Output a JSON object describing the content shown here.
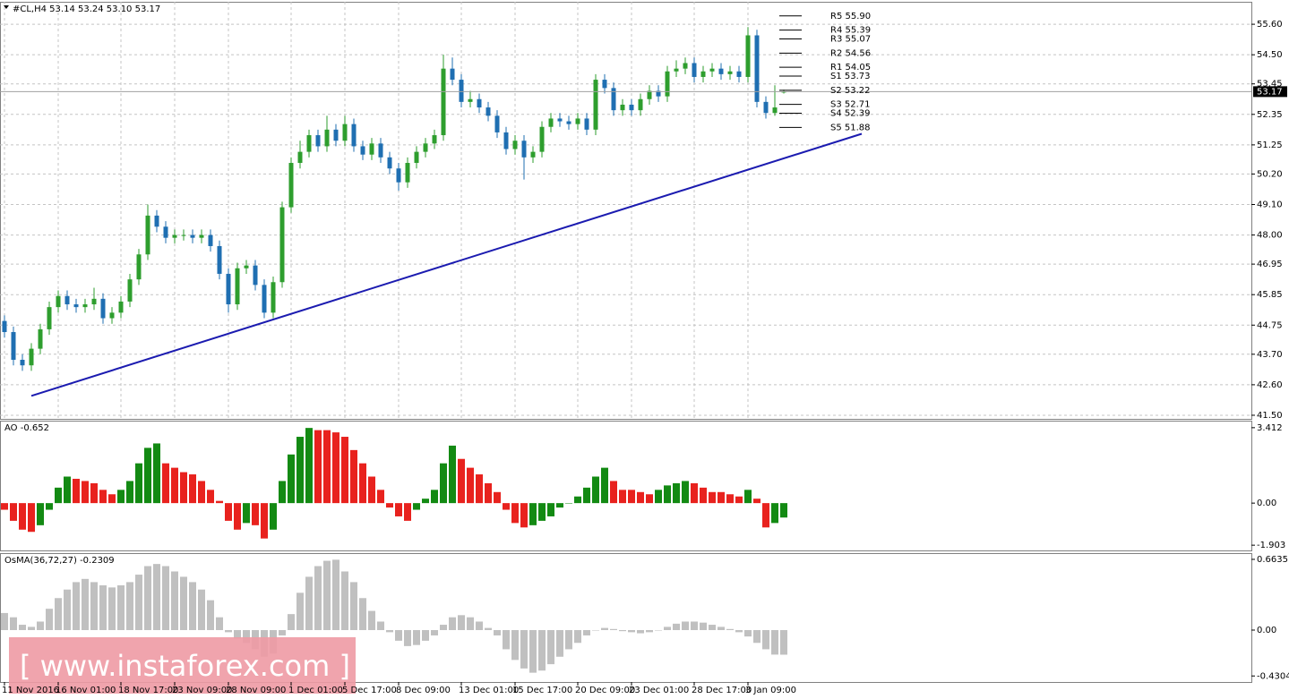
{
  "chart_data": [
    {
      "type": "candlestick",
      "title": "#CL,H4  53.14 53.24 53.10 53.17",
      "categories": [
        "11 Nov 2016",
        null,
        null,
        null,
        null,
        null,
        "16 Nov 01:00",
        null,
        null,
        null,
        null,
        null,
        null,
        "18 Nov 17:00",
        null,
        null,
        null,
        null,
        null,
        "23 Nov 09:00",
        null,
        null,
        null,
        null,
        null,
        "28 Nov 09:00",
        null,
        null,
        null,
        null,
        null,
        null,
        "1 Dec 01:00",
        null,
        null,
        null,
        null,
        null,
        "5 Dec 17:00",
        null,
        null,
        null,
        null,
        null,
        "8 Dec 09:00",
        null,
        null,
        null,
        null,
        null,
        null,
        "13 Dec 01:00",
        null,
        null,
        null,
        null,
        null,
        "15 Dec 17:00",
        null,
        null,
        null,
        null,
        null,
        null,
        "20 Dec 09:00",
        null,
        null,
        null,
        null,
        null,
        "23 Dec 01:00",
        null,
        null,
        null,
        null,
        null,
        null,
        "28 Dec 17:00",
        null,
        null,
        null,
        null,
        null,
        "3 Jan 09:00",
        null,
        null,
        null,
        null
      ],
      "open": [
        44.9,
        44.5,
        43.5,
        43.3,
        43.9,
        44.6,
        45.4,
        45.8,
        45.5,
        45.4,
        45.5,
        45.7,
        45.0,
        45.2,
        45.6,
        46.4,
        47.3,
        48.7,
        48.3,
        47.9,
        48.0,
        48.0,
        47.9,
        48.0,
        47.6,
        46.6,
        45.5,
        46.8,
        46.9,
        46.2,
        45.2,
        46.3,
        49.0,
        50.6,
        51.0,
        51.6,
        51.2,
        51.8,
        51.4,
        52.0,
        51.2,
        50.9,
        51.3,
        50.8,
        50.4,
        49.9,
        50.6,
        51.0,
        51.3,
        51.6,
        54.0,
        53.6,
        52.8,
        52.9,
        52.6,
        52.3,
        51.7,
        51.1,
        51.4,
        50.8,
        51.0,
        51.9,
        52.2,
        52.1,
        52.0,
        52.2,
        51.8,
        53.6,
        53.3,
        52.5,
        52.7,
        52.5,
        52.9,
        53.2,
        53.0,
        53.9,
        54.0,
        54.2,
        53.7,
        53.9,
        54.0,
        53.8,
        53.9,
        53.7,
        55.2,
        52.8,
        52.4,
        53.14
      ],
      "high": [
        45.1,
        44.7,
        43.7,
        44.1,
        44.8,
        45.6,
        46.0,
        46.0,
        45.7,
        45.7,
        46.1,
        45.9,
        45.4,
        45.8,
        46.6,
        47.5,
        49.1,
        48.9,
        48.5,
        48.2,
        48.2,
        48.2,
        48.2,
        48.2,
        47.8,
        46.8,
        47.0,
        47.1,
        47.1,
        46.4,
        46.5,
        49.2,
        50.8,
        51.4,
        51.8,
        51.8,
        52.3,
        52.0,
        52.3,
        52.2,
        51.4,
        51.5,
        51.5,
        51.0,
        50.6,
        50.8,
        51.2,
        51.5,
        51.8,
        54.5,
        54.4,
        53.8,
        53.2,
        53.1,
        52.8,
        52.5,
        51.9,
        51.6,
        51.6,
        51.2,
        52.1,
        52.4,
        52.4,
        52.3,
        52.4,
        52.4,
        53.8,
        53.8,
        53.5,
        52.9,
        52.9,
        53.1,
        53.4,
        53.4,
        54.1,
        54.3,
        54.4,
        54.4,
        54.1,
        54.2,
        54.2,
        54.1,
        54.1,
        55.5,
        55.4,
        53.0,
        53.4,
        53.24
      ],
      "low": [
        44.3,
        43.3,
        43.1,
        43.1,
        43.7,
        44.4,
        45.2,
        45.3,
        45.2,
        45.2,
        45.3,
        44.8,
        44.8,
        45.0,
        45.4,
        46.2,
        47.1,
        48.1,
        47.7,
        47.7,
        47.8,
        47.7,
        47.7,
        47.4,
        46.4,
        45.2,
        45.3,
        46.6,
        46.0,
        45.0,
        45.0,
        46.1,
        48.8,
        50.4,
        50.8,
        51.0,
        51.0,
        51.2,
        51.2,
        51.0,
        50.7,
        50.7,
        50.6,
        50.2,
        49.6,
        49.7,
        50.4,
        50.8,
        51.1,
        51.4,
        53.4,
        52.6,
        52.6,
        52.4,
        52.1,
        51.5,
        50.9,
        50.9,
        50.0,
        50.6,
        50.8,
        51.7,
        51.9,
        51.8,
        51.8,
        51.6,
        51.6,
        53.1,
        52.3,
        52.3,
        52.3,
        52.3,
        52.7,
        52.8,
        52.8,
        53.7,
        53.8,
        53.5,
        53.5,
        53.7,
        53.6,
        53.6,
        53.5,
        53.5,
        52.6,
        52.2,
        52.3,
        53.1
      ],
      "close": [
        44.5,
        43.5,
        43.3,
        43.9,
        44.6,
        45.4,
        45.8,
        45.5,
        45.4,
        45.5,
        45.7,
        45.0,
        45.2,
        45.6,
        46.4,
        47.3,
        48.7,
        48.3,
        47.9,
        48.0,
        48.0,
        47.9,
        48.0,
        47.6,
        46.6,
        45.5,
        46.8,
        46.9,
        46.2,
        45.2,
        46.3,
        49.0,
        50.6,
        51.0,
        51.6,
        51.2,
        51.8,
        51.4,
        52.0,
        51.2,
        50.9,
        51.3,
        50.8,
        50.4,
        49.9,
        50.6,
        51.0,
        51.3,
        51.6,
        54.0,
        53.6,
        52.8,
        52.9,
        52.6,
        52.3,
        51.7,
        51.1,
        51.4,
        50.8,
        51.0,
        51.9,
        52.2,
        52.1,
        52.0,
        52.2,
        51.8,
        53.6,
        53.3,
        52.5,
        52.7,
        52.5,
        52.9,
        53.2,
        53.0,
        53.9,
        54.0,
        54.2,
        53.7,
        53.9,
        54.0,
        53.8,
        53.9,
        53.7,
        55.2,
        52.8,
        52.4,
        52.6,
        53.17
      ],
      "up_color": "#2e9e2e",
      "down_color": "#1f6fb2",
      "ylim": [
        41.37,
        56.41
      ],
      "yticks": [
        {
          "value": 55.6,
          "label": "55.60"
        },
        {
          "value": 54.5,
          "label": "54.50"
        },
        53.45,
        52.35,
        51.25,
        {
          "value": 50.2,
          "label": "50.20"
        },
        {
          "value": 49.1,
          "label": "49.10"
        },
        {
          "value": 48,
          "label": "48.00"
        },
        46.95,
        45.85,
        44.75,
        {
          "value": 43.7,
          "label": "43.70"
        },
        {
          "value": 42.6,
          "label": "42.60"
        },
        {
          "value": 41.5,
          "label": "41.50"
        }
      ],
      "grid": true,
      "last_price": 53.17,
      "pivots": [
        {
          "label": "R5 55.90",
          "value": 55.9
        },
        {
          "label": "R4 55.39",
          "value": 55.39
        },
        {
          "label": "R3 55.07",
          "value": 55.07
        },
        {
          "label": "R2 54.56",
          "value": 54.56
        },
        {
          "label": "R1 54.05",
          "value": 54.05
        },
        {
          "label": "S1 53.73",
          "value": 53.73
        },
        {
          "label": "S2 53.22",
          "value": 53.22
        },
        {
          "label": "S3 52.71",
          "value": 52.71
        },
        {
          "label": "S4 52.39",
          "value": 52.39
        },
        {
          "label": "S5 51.88",
          "value": 51.88
        }
      ],
      "trendline": {
        "start": [
          3,
          42.2
        ],
        "end": [
          95.7,
          51.65
        ],
        "color": "#1b1bb0"
      }
    },
    {
      "type": "bar",
      "title": "AO -0.652",
      "values": [
        -0.3,
        -0.8,
        -1.2,
        -1.3,
        -1.0,
        -0.3,
        0.7,
        1.2,
        1.1,
        1.0,
        0.9,
        0.6,
        0.4,
        0.6,
        1.0,
        1.8,
        2.5,
        2.7,
        1.8,
        1.6,
        1.4,
        1.3,
        1.0,
        0.6,
        0.1,
        -0.8,
        -1.2,
        -0.9,
        -1.0,
        -1.6,
        -1.2,
        1.0,
        2.2,
        3.0,
        3.4,
        3.3,
        3.3,
        3.2,
        3.0,
        2.4,
        1.8,
        1.2,
        0.6,
        -0.2,
        -0.6,
        -0.8,
        -0.3,
        0.2,
        0.6,
        1.8,
        2.6,
        2.0,
        1.6,
        1.3,
        0.9,
        0.5,
        -0.3,
        -0.9,
        -1.1,
        -1.0,
        -0.8,
        -0.6,
        -0.2,
        0.0,
        0.3,
        0.7,
        1.2,
        1.6,
        1.0,
        0.6,
        0.6,
        0.5,
        0.4,
        0.6,
        0.8,
        0.9,
        1.0,
        0.9,
        0.7,
        0.5,
        0.5,
        0.4,
        0.3,
        0.6,
        0.2,
        -1.1,
        -0.9,
        -0.652
      ],
      "up_color": "#138a13",
      "down_color": "#e8221e",
      "ylim": [
        -2.14,
        3.73
      ],
      "yticks": [
        3.412,
        {
          "value": 0,
          "label": "0.00"
        },
        -1.903
      ],
      "grid": false
    },
    {
      "type": "bar",
      "title": "OsMA(36,72,27) -0.2309",
      "values": [
        0.16,
        0.12,
        0.05,
        0.03,
        0.08,
        0.2,
        0.3,
        0.38,
        0.45,
        0.48,
        0.45,
        0.42,
        0.4,
        0.42,
        0.45,
        0.52,
        0.6,
        0.62,
        0.6,
        0.55,
        0.5,
        0.45,
        0.38,
        0.28,
        0.12,
        -0.02,
        -0.08,
        -0.12,
        -0.18,
        -0.25,
        -0.22,
        -0.05,
        0.15,
        0.35,
        0.5,
        0.6,
        0.65,
        0.66,
        0.55,
        0.45,
        0.3,
        0.18,
        0.08,
        -0.02,
        -0.1,
        -0.15,
        -0.14,
        -0.1,
        -0.05,
        0.05,
        0.12,
        0.14,
        0.12,
        0.08,
        0.02,
        -0.05,
        -0.18,
        -0.28,
        -0.36,
        -0.4,
        -0.38,
        -0.32,
        -0.25,
        -0.18,
        -0.12,
        -0.05,
        0.0,
        0.02,
        0.01,
        -0.01,
        -0.02,
        -0.03,
        -0.02,
        0.0,
        0.03,
        0.06,
        0.08,
        0.08,
        0.07,
        0.05,
        0.03,
        0.01,
        -0.02,
        -0.06,
        -0.12,
        -0.18,
        -0.23,
        -0.2309
      ],
      "color": "#c0c0c0",
      "ylim": [
        -0.487,
        0.722
      ],
      "yticks": [
        0.6635,
        {
          "value": 0,
          "label": "0.00"
        },
        -0.4304
      ],
      "grid": false
    }
  ],
  "watermark": "[ www.instaforex.com ]"
}
